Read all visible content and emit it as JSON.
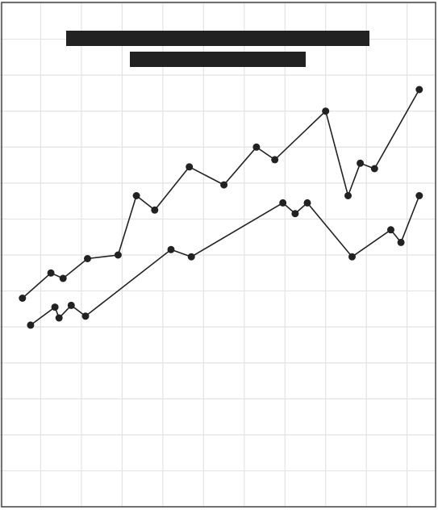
{
  "chart_data": {
    "type": "line",
    "title_redacted": true,
    "subtitle_redacted": true,
    "grid": true,
    "x_range": [
      0,
      10.7
    ],
    "y_range": [
      0,
      14
    ],
    "series": [
      {
        "x": [
          0.55,
          1.25,
          1.55,
          2.15,
          2.9,
          3.35,
          3.8,
          4.65,
          5.5,
          6.3,
          6.75,
          8.0,
          8.55,
          8.85,
          9.2,
          10.3
        ],
        "y": [
          5.8,
          6.5,
          6.35,
          6.9,
          7.0,
          8.65,
          8.25,
          9.45,
          8.95,
          10.0,
          9.65,
          11.0,
          8.65,
          9.55,
          9.4,
          11.6
        ]
      },
      {
        "x": [
          0.75,
          1.35,
          1.45,
          1.75,
          2.1,
          4.2,
          4.7,
          6.95,
          7.25,
          7.55,
          8.65,
          9.6,
          9.85,
          10.3
        ],
        "y": [
          5.05,
          5.55,
          5.25,
          5.6,
          5.3,
          7.15,
          6.95,
          8.45,
          8.15,
          8.45,
          6.95,
          7.7,
          7.35,
          8.65
        ]
      }
    ],
    "colors": {
      "line": "#222222",
      "marker": "#222222",
      "grid": "#e3e3e3",
      "frame": "#444444",
      "title_bar": "#222222"
    }
  }
}
